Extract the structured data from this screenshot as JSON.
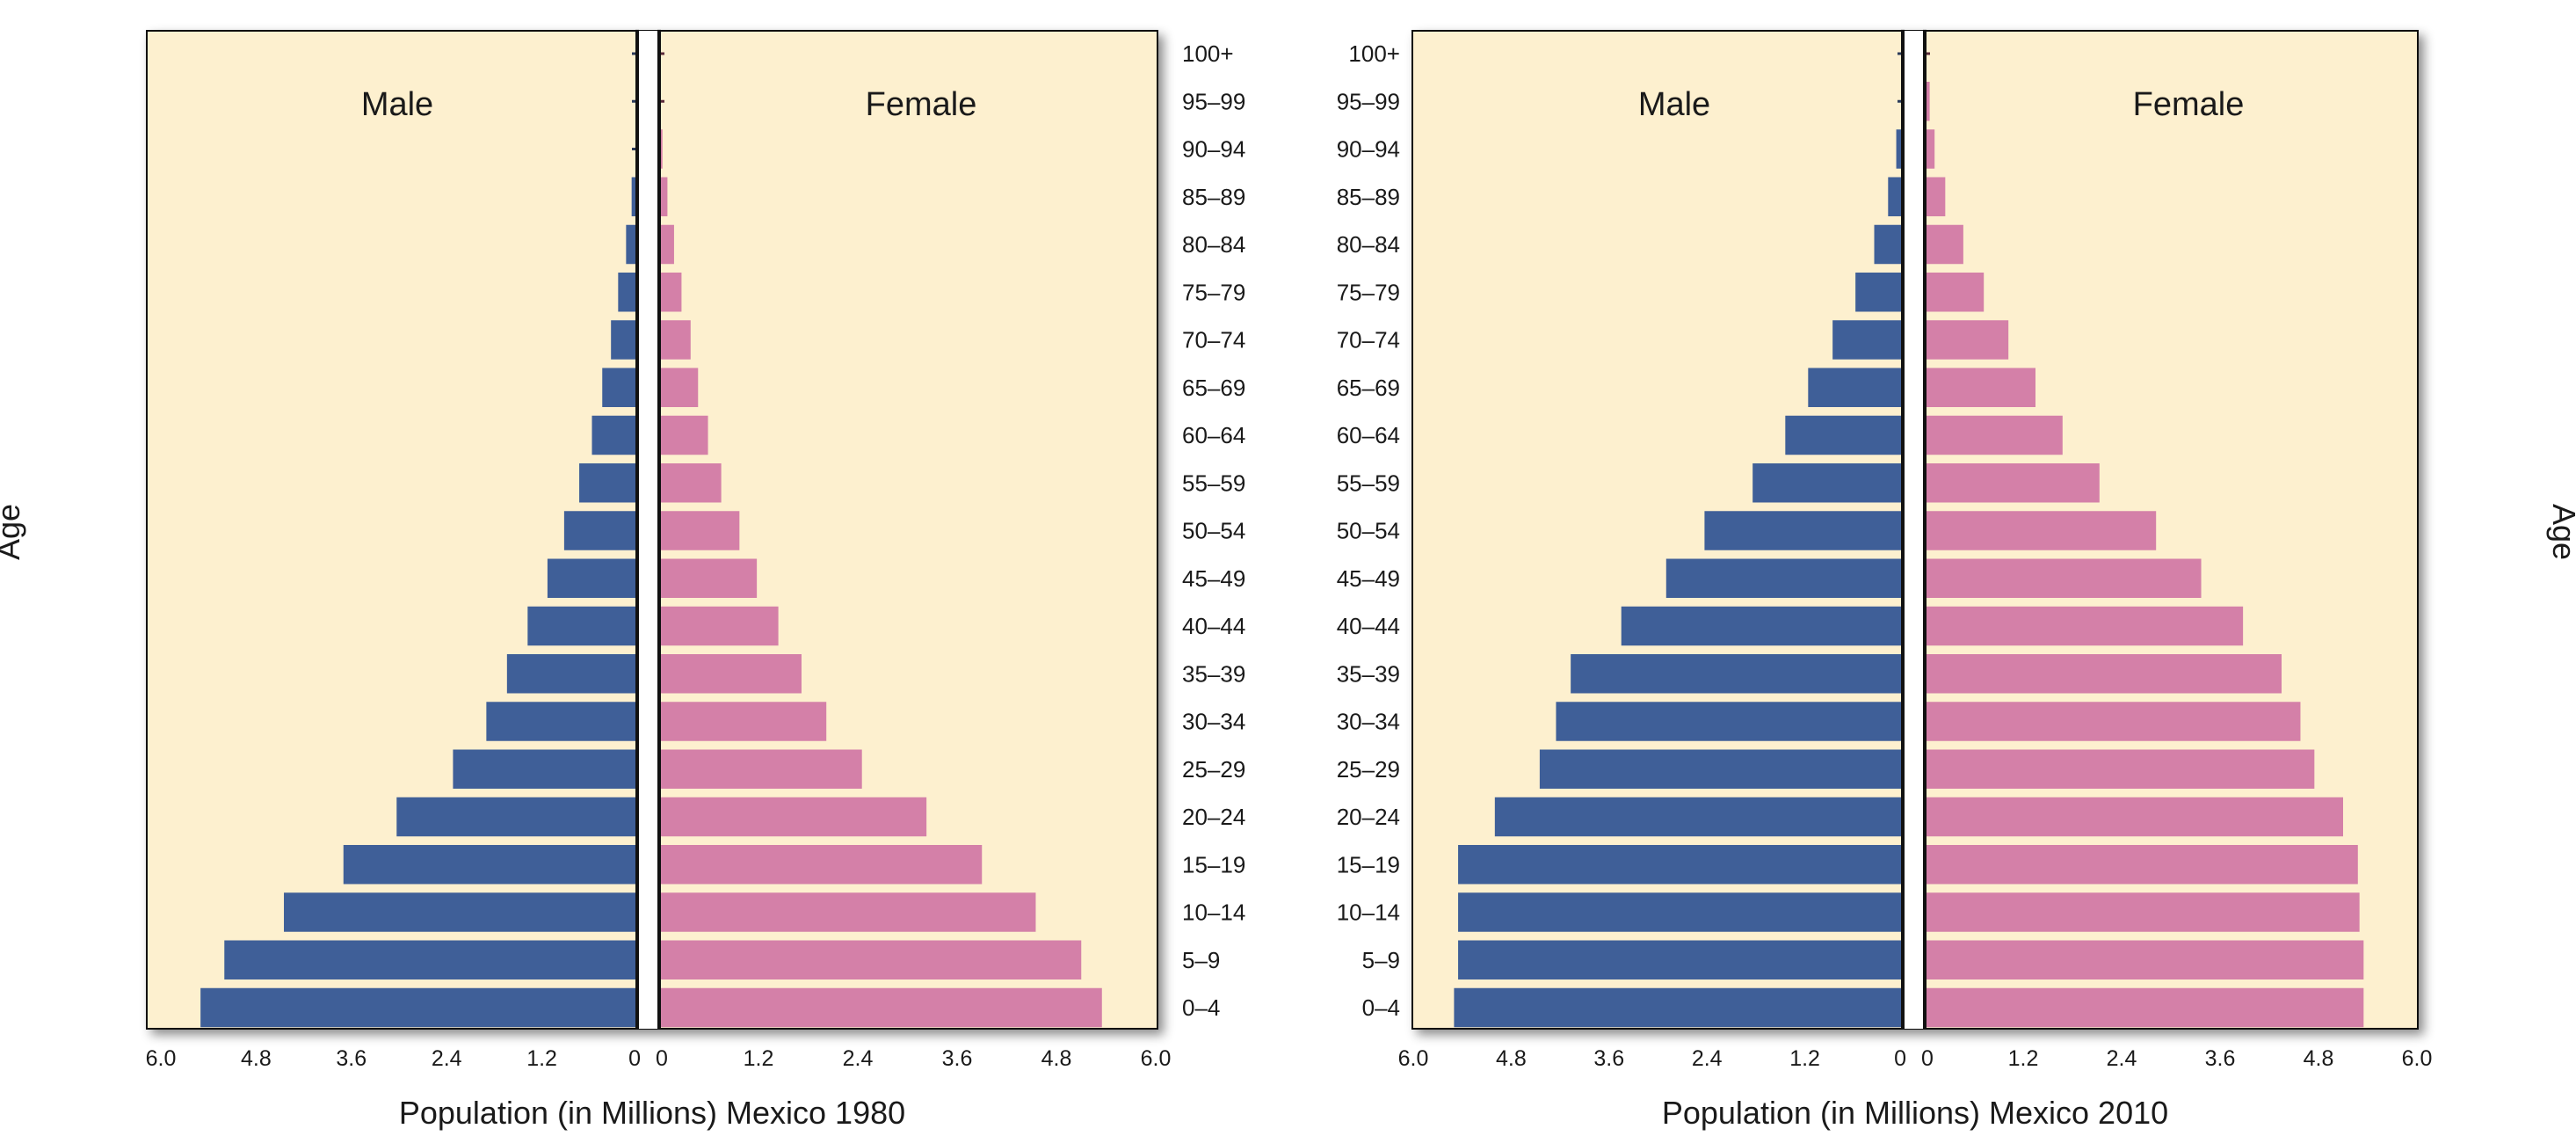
{
  "chart_data": [
    {
      "type": "bar",
      "orientation": "horizontal",
      "layout": "population-pyramid",
      "title": "",
      "xlabel": "Population (in Millions) Mexico 1980",
      "ylabel": "Age",
      "ylabel_side": "left",
      "xlim": [
        0,
        6.0
      ],
      "x_ticks": [
        "6.0",
        "4.8",
        "3.6",
        "2.4",
        "1.2",
        "0",
        "0",
        "1.2",
        "2.4",
        "3.6",
        "4.8",
        "6.0"
      ],
      "categories": [
        "0–4",
        "5–9",
        "10–14",
        "15–19",
        "20–24",
        "25–29",
        "30–34",
        "35–39",
        "40–44",
        "45–49",
        "50–54",
        "55–59",
        "60–64",
        "65–69",
        "70–74",
        "75–79",
        "80–84",
        "85–89",
        "90–94",
        "95–99",
        "100+"
      ],
      "series": [
        {
          "name": "Male",
          "color": "#3f5f98",
          "values": [
            5.5,
            5.2,
            4.45,
            3.7,
            3.03,
            2.32,
            1.9,
            1.64,
            1.38,
            1.13,
            0.92,
            0.73,
            0.57,
            0.44,
            0.33,
            0.24,
            0.14,
            0.07,
            0.03,
            0.01,
            0.005
          ]
        },
        {
          "name": "Female",
          "color": "#d480a8",
          "values": [
            5.35,
            5.1,
            4.55,
            3.9,
            3.23,
            2.45,
            2.02,
            1.72,
            1.44,
            1.18,
            0.97,
            0.75,
            0.59,
            0.47,
            0.38,
            0.27,
            0.18,
            0.1,
            0.04,
            0.015,
            0.005
          ]
        }
      ]
    },
    {
      "type": "bar",
      "orientation": "horizontal",
      "layout": "population-pyramid",
      "title": "",
      "xlabel": "Population (in Millions) Mexico 2010",
      "ylabel": "Age",
      "ylabel_side": "right",
      "xlim": [
        0,
        6.0
      ],
      "x_ticks": [
        "6.0",
        "4.8",
        "3.6",
        "2.4",
        "1.2",
        "0",
        "0",
        "1.2",
        "2.4",
        "3.6",
        "4.8",
        "6.0"
      ],
      "categories": [
        "0–4",
        "5–9",
        "10–14",
        "15–19",
        "20–24",
        "25–29",
        "30–34",
        "35–39",
        "40–44",
        "45–49",
        "50–54",
        "55–59",
        "60–64",
        "65–69",
        "70–74",
        "75–79",
        "80–84",
        "85–89",
        "90–94",
        "95–99",
        "100+"
      ],
      "series": [
        {
          "name": "Male",
          "color": "#3f5f98",
          "values": [
            5.5,
            5.45,
            5.45,
            5.45,
            5.0,
            4.45,
            4.25,
            4.07,
            3.45,
            2.9,
            2.43,
            1.84,
            1.44,
            1.16,
            0.86,
            0.58,
            0.35,
            0.18,
            0.08,
            0.03,
            0.01
          ]
        },
        {
          "name": "Female",
          "color": "#d480a8",
          "values": [
            5.35,
            5.35,
            5.3,
            5.28,
            5.1,
            4.75,
            4.58,
            4.35,
            3.88,
            3.37,
            2.82,
            2.13,
            1.68,
            1.35,
            1.02,
            0.72,
            0.47,
            0.25,
            0.12,
            0.06,
            0.03
          ]
        }
      ]
    }
  ]
}
